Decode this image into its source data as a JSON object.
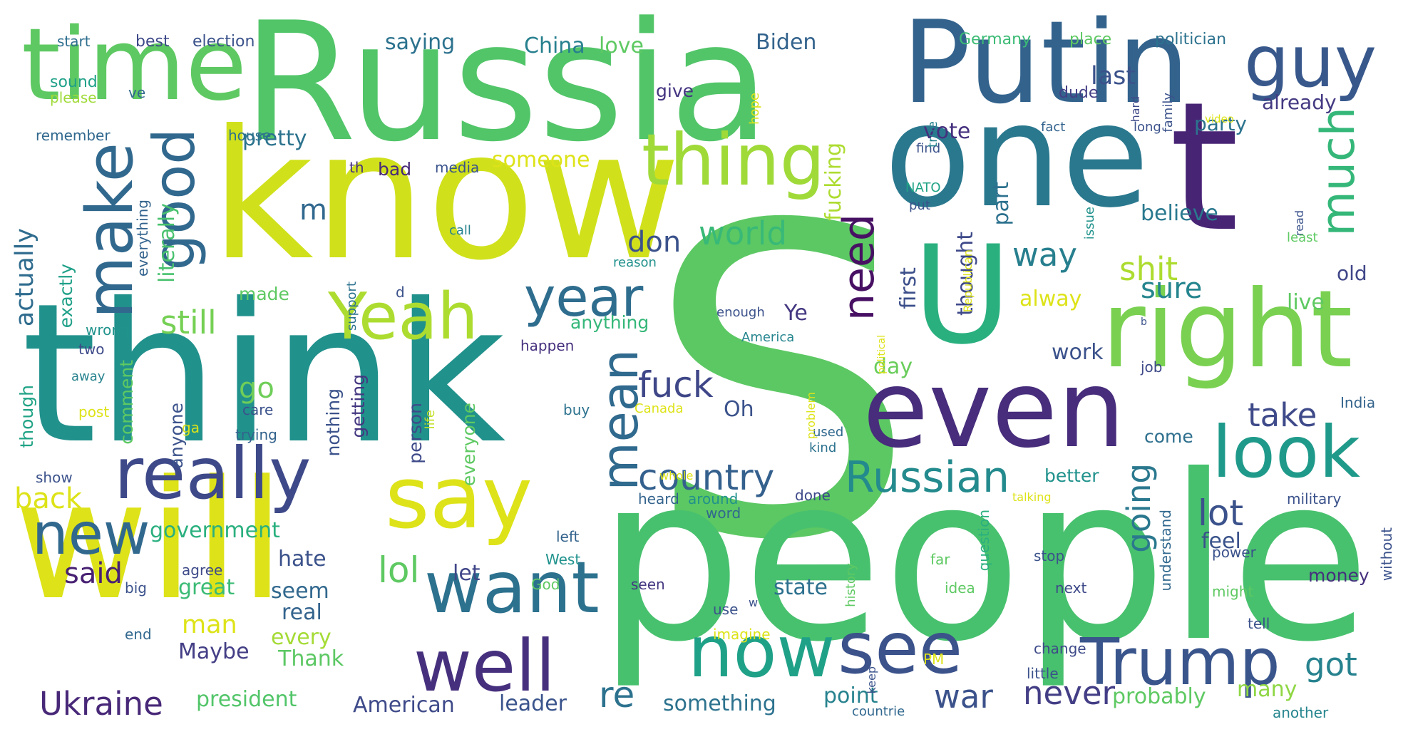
{
  "words": [
    {
      "text": "S",
      "color": "#5cc863"
    },
    {
      "text": "people",
      "color": "#48c16e"
    },
    {
      "text": "think",
      "color": "#21918c"
    },
    {
      "text": "know",
      "color": "#d0e11c"
    },
    {
      "text": "Russia",
      "color": "#52c569"
    },
    {
      "text": "one",
      "color": "#2a788e"
    },
    {
      "text": "t",
      "color": "#482475"
    },
    {
      "text": "will",
      "color": "#dde318"
    },
    {
      "text": "Putin",
      "color": "#33638d"
    },
    {
      "text": "time",
      "color": "#5ec962"
    },
    {
      "text": "U",
      "color": "#2ab07f"
    },
    {
      "text": "right",
      "color": "#7ad151"
    },
    {
      "text": "even",
      "color": "#472d7b"
    },
    {
      "text": "say",
      "color": "#dde318"
    },
    {
      "text": "look",
      "color": "#1f9a8a"
    },
    {
      "text": "really",
      "color": "#3e4989"
    },
    {
      "text": "want",
      "color": "#2c718e"
    },
    {
      "text": "thing",
      "color": "#a0da39"
    },
    {
      "text": "make",
      "color": "#31688e"
    },
    {
      "text": "good",
      "color": "#31688e"
    },
    {
      "text": "Yeah",
      "color": "#addc30"
    },
    {
      "text": "see",
      "color": "#3b528b"
    },
    {
      "text": "now",
      "color": "#1fa188"
    },
    {
      "text": "well",
      "color": "#46307e"
    },
    {
      "text": "Trump",
      "color": "#39558c"
    },
    {
      "text": "guy",
      "color": "#38588c"
    },
    {
      "text": "much",
      "color": "#35b779"
    },
    {
      "text": "need",
      "color": "#471063"
    },
    {
      "text": "year",
      "color": "#2e6d8e"
    },
    {
      "text": "mean",
      "color": "#306a8e"
    },
    {
      "text": "new",
      "color": "#31688e"
    },
    {
      "text": "Russian",
      "color": "#238a8d"
    },
    {
      "text": "Ukraine",
      "color": "#482878"
    },
    {
      "text": "country",
      "color": "#34608d"
    },
    {
      "text": "fuck",
      "color": "#3f4788"
    },
    {
      "text": "never",
      "color": "#433e85"
    },
    {
      "text": "war",
      "color": "#3b528b"
    },
    {
      "text": "got",
      "color": "#26828e"
    },
    {
      "text": "re",
      "color": "#2c728e"
    },
    {
      "text": "lot",
      "color": "#3b528b"
    },
    {
      "text": "going",
      "color": "#2a788e"
    },
    {
      "text": "take",
      "color": "#3e4a89"
    },
    {
      "text": "way",
      "color": "#277f8e"
    },
    {
      "text": "shit",
      "color": "#addc30"
    },
    {
      "text": "sure",
      "color": "#25858e"
    },
    {
      "text": "world",
      "color": "#38b977"
    },
    {
      "text": "don",
      "color": "#3b528b"
    },
    {
      "text": "still",
      "color": "#75d054"
    },
    {
      "text": "back",
      "color": "#dde318"
    },
    {
      "text": "said",
      "color": "#482173"
    },
    {
      "text": "lol",
      "color": "#5ec962"
    },
    {
      "text": "go",
      "color": "#6ece58"
    },
    {
      "text": "m",
      "color": "#31688e"
    },
    {
      "text": "actually",
      "color": "#2f6c8e"
    },
    {
      "text": "literally",
      "color": "#48c16e"
    },
    {
      "text": "pretty",
      "color": "#2c738e"
    },
    {
      "text": "fucking",
      "color": "#addc30"
    },
    {
      "text": "government",
      "color": "#2ab07f"
    },
    {
      "text": "president",
      "color": "#52c569"
    },
    {
      "text": "American",
      "color": "#3e4a89"
    },
    {
      "text": "leader",
      "color": "#3a548c"
    },
    {
      "text": "something",
      "color": "#2c728e"
    },
    {
      "text": "point",
      "color": "#26828e"
    },
    {
      "text": "probably",
      "color": "#5ec962"
    },
    {
      "text": "many",
      "color": "#8fd744"
    },
    {
      "text": "money",
      "color": "#46307e"
    },
    {
      "text": "state",
      "color": "#2d708e"
    },
    {
      "text": "great",
      "color": "#3bbb75"
    },
    {
      "text": "man",
      "color": "#dde318"
    },
    {
      "text": "seem",
      "color": "#31688e"
    },
    {
      "text": "real",
      "color": "#33638d"
    },
    {
      "text": "every",
      "color": "#a5db36"
    },
    {
      "text": "Maybe",
      "color": "#433e85"
    },
    {
      "text": "Thank",
      "color": "#5cc863"
    },
    {
      "text": "hate",
      "color": "#3b528b"
    },
    {
      "text": "let",
      "color": "#404688"
    },
    {
      "text": "feel",
      "color": "#3a538b"
    },
    {
      "text": "better",
      "color": "#20928c"
    },
    {
      "text": "come",
      "color": "#2e6f8e"
    },
    {
      "text": "work",
      "color": "#3b528b"
    },
    {
      "text": "alway",
      "color": "#dde318"
    },
    {
      "text": "day",
      "color": "#69cd5b"
    },
    {
      "text": "first",
      "color": "#3c4f8a"
    },
    {
      "text": "part",
      "color": "#2c718e"
    },
    {
      "text": "thought",
      "color": "#3e4989"
    },
    {
      "text": "believe",
      "color": "#29788e"
    },
    {
      "text": "old",
      "color": "#404688"
    },
    {
      "text": "live",
      "color": "#5ec962"
    },
    {
      "text": "party",
      "color": "#2c738e"
    },
    {
      "text": "last",
      "color": "#3b528b"
    },
    {
      "text": "already",
      "color": "#443a83"
    },
    {
      "text": "vote",
      "color": "#46307e"
    },
    {
      "text": "Oh",
      "color": "#3b528b"
    },
    {
      "text": "Ye",
      "color": "#453781"
    },
    {
      "text": "anything",
      "color": "#35b779"
    },
    {
      "text": "give",
      "color": "#453581"
    },
    {
      "text": "love",
      "color": "#5ec962"
    },
    {
      "text": "Biden",
      "color": "#33638d"
    },
    {
      "text": "China",
      "color": "#27808e"
    },
    {
      "text": "saying",
      "color": "#2c728e"
    },
    {
      "text": "someone",
      "color": "#dde318"
    },
    {
      "text": "bad",
      "color": "#482878"
    },
    {
      "text": "media",
      "color": "#3a538b"
    },
    {
      "text": "th",
      "color": "#46307e"
    },
    {
      "text": "made",
      "color": "#5ec962"
    },
    {
      "text": "exactly",
      "color": "#1fa088"
    },
    {
      "text": "comment",
      "color": "#5ec962"
    },
    {
      "text": "though",
      "color": "#20a386"
    },
    {
      "text": "anyone",
      "color": "#3b528b"
    },
    {
      "text": "nothing",
      "color": "#3b528b"
    },
    {
      "text": "getting",
      "color": "#453781"
    },
    {
      "text": "person",
      "color": "#3e4a89"
    },
    {
      "text": "everyone",
      "color": "#5ec962"
    },
    {
      "text": "house",
      "color": "#2c728e"
    },
    {
      "text": "remember",
      "color": "#31688e"
    },
    {
      "text": "sound",
      "color": "#1fa188"
    },
    {
      "text": "please",
      "color": "#a0da39"
    },
    {
      "text": "ve",
      "color": "#31688e"
    },
    {
      "text": "start",
      "color": "#2e6e8e"
    },
    {
      "text": "best",
      "color": "#3e4989"
    },
    {
      "text": "election",
      "color": "#3b528b"
    },
    {
      "text": "everything",
      "color": "#33638d"
    },
    {
      "text": "wrong",
      "color": "#20938c"
    },
    {
      "text": "two",
      "color": "#3e4a89"
    },
    {
      "text": "away",
      "color": "#26828e"
    },
    {
      "text": "post",
      "color": "#dde318"
    },
    {
      "text": "ga",
      "color": "#dde318"
    },
    {
      "text": "show",
      "color": "#3b528b"
    },
    {
      "text": "trying",
      "color": "#33638d"
    },
    {
      "text": "care",
      "color": "#3b528b"
    },
    {
      "text": "life",
      "color": "#c2df23"
    },
    {
      "text": "support",
      "color": "#2c728e"
    },
    {
      "text": "call",
      "color": "#26828e"
    },
    {
      "text": "d",
      "color": "#3b528b"
    },
    {
      "text": "happen",
      "color": "#46307e"
    },
    {
      "text": "buy",
      "color": "#2c728e"
    },
    {
      "text": "Canada",
      "color": "#dde318"
    },
    {
      "text": "heard",
      "color": "#33638d"
    },
    {
      "text": "around",
      "color": "#21918c"
    },
    {
      "text": "done",
      "color": "#3e4a89"
    },
    {
      "text": "word",
      "color": "#31688e"
    },
    {
      "text": "enough",
      "color": "#3b528b"
    },
    {
      "text": "America",
      "color": "#25858e"
    },
    {
      "text": "reason",
      "color": "#21918c"
    },
    {
      "text": "kind",
      "color": "#2c728e"
    },
    {
      "text": "used",
      "color": "#31688e"
    },
    {
      "text": "problem",
      "color": "#dde318"
    },
    {
      "text": "political",
      "color": "#dde318"
    },
    {
      "text": "Republican",
      "color": "#dde318"
    },
    {
      "text": "NATO",
      "color": "#20a386"
    },
    {
      "text": "put",
      "color": "#3b528b"
    },
    {
      "text": "find",
      "color": "#3b528b"
    },
    {
      "text": "true",
      "color": "#26828e"
    },
    {
      "text": "issue",
      "color": "#20928c"
    },
    {
      "text": "fact",
      "color": "#33638d"
    },
    {
      "text": "long",
      "color": "#3b528b"
    },
    {
      "text": "video",
      "color": "#dde318"
    },
    {
      "text": "Germany",
      "color": "#3bbb75"
    },
    {
      "text": "place",
      "color": "#5ec962"
    },
    {
      "text": "politician",
      "color": "#2c728e"
    },
    {
      "text": "dude",
      "color": "#433e85"
    },
    {
      "text": "family",
      "color": "#3b528b"
    },
    {
      "text": "hope",
      "color": "#dde318"
    },
    {
      "text": "hard",
      "color": "#3e4a89"
    },
    {
      "text": "read",
      "color": "#3b528b"
    },
    {
      "text": "least",
      "color": "#5ec962"
    },
    {
      "text": "b",
      "color": "#3b528b"
    },
    {
      "text": "job",
      "color": "#3e4a89"
    },
    {
      "text": "India",
      "color": "#33638d"
    },
    {
      "text": "whole",
      "color": "#dde318"
    },
    {
      "text": "talking",
      "color": "#dde318"
    },
    {
      "text": "military",
      "color": "#3b528b"
    },
    {
      "text": "without",
      "color": "#3b528b"
    },
    {
      "text": "understand",
      "color": "#31688e"
    },
    {
      "text": "power",
      "color": "#3b528b"
    },
    {
      "text": "might",
      "color": "#5ec962"
    },
    {
      "text": "tell",
      "color": "#3b528b"
    },
    {
      "text": "another",
      "color": "#25858e"
    },
    {
      "text": "little",
      "color": "#3b528b"
    },
    {
      "text": "change",
      "color": "#3e4a89"
    },
    {
      "text": "stop",
      "color": "#3b528b"
    },
    {
      "text": "next",
      "color": "#3e4989"
    },
    {
      "text": "question",
      "color": "#2ab07f"
    },
    {
      "text": "far",
      "color": "#5ec962"
    },
    {
      "text": "idea",
      "color": "#5ec962"
    },
    {
      "text": "history",
      "color": "#5ec962"
    },
    {
      "text": "PM",
      "color": "#dde318"
    },
    {
      "text": "imagine",
      "color": "#dde318"
    },
    {
      "text": "keep",
      "color": "#3b528b"
    },
    {
      "text": "countrie",
      "color": "#31688e"
    },
    {
      "text": "use",
      "color": "#3b528b"
    },
    {
      "text": "seen",
      "color": "#453781"
    },
    {
      "text": "w",
      "color": "#3b528b"
    },
    {
      "text": "God",
      "color": "#5ec962"
    },
    {
      "text": "West",
      "color": "#20928c"
    },
    {
      "text": "left",
      "color": "#33638d"
    },
    {
      "text": "agree",
      "color": "#3e4a89"
    },
    {
      "text": "end",
      "color": "#31688e"
    },
    {
      "text": "big",
      "color": "#3b528b"
    }
  ]
}
